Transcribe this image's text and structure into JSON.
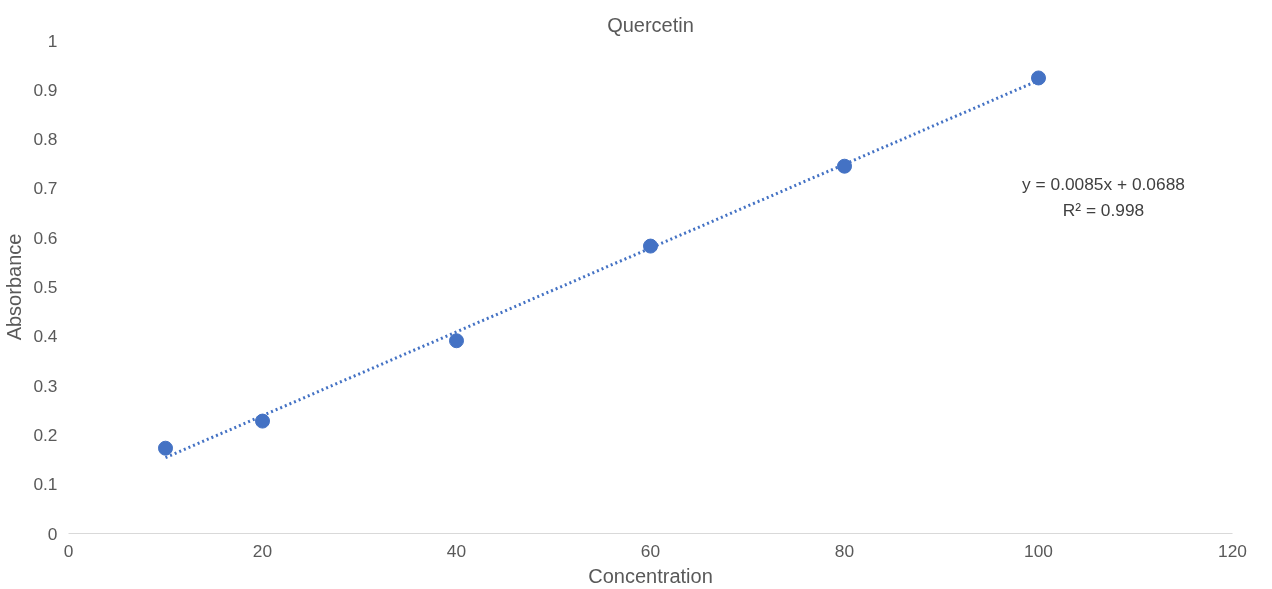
{
  "chart_data": {
    "type": "scatter",
    "title": "Quercetin",
    "xlabel": "Concentration",
    "ylabel": "Absorbance",
    "xlim": [
      0,
      120
    ],
    "xticks": [
      0,
      20,
      40,
      60,
      80,
      100,
      120
    ],
    "ylim": [
      0,
      1
    ],
    "yticks": [
      0,
      0.1,
      0.2,
      0.3,
      0.4,
      0.5,
      0.6,
      0.7,
      0.8,
      0.9,
      1
    ],
    "marker": "circle",
    "series": [
      {
        "color": "#4472c4",
        "x": [
          10,
          20,
          40,
          60,
          80,
          100
        ],
        "values": [
          0.173,
          0.228,
          0.391,
          0.583,
          0.745,
          0.924
        ]
      },
      {
        "type": "line",
        "color": "#4472c4",
        "line_style": "dotted",
        "marker": "none",
        "x": [
          10,
          100
        ],
        "values": [
          0.154,
          0.919
        ]
      }
    ],
    "annotations": [
      "y = 0.0085x + 0.0688",
      "R² = 0.998"
    ]
  }
}
